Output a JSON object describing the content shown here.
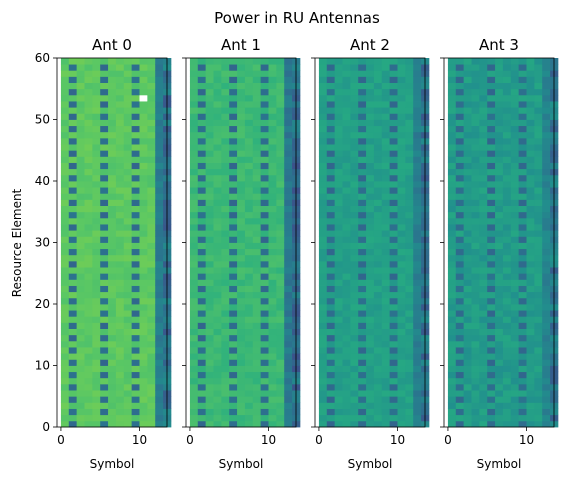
{
  "chart_data": {
    "type": "heatmap",
    "title": "Power in RU Antennas",
    "ylabel": "Resource Element",
    "xlabel": "Symbol",
    "xlim": [
      -0.5,
      13.5
    ],
    "ylim": [
      0,
      60
    ],
    "x_ticks": [
      0,
      10
    ],
    "y_ticks": [
      0,
      10,
      20,
      30,
      40,
      50,
      60
    ],
    "n_symbols": 14,
    "n_resource_elements": 60,
    "pilot_symbols": [
      1,
      5,
      9
    ],
    "pilot_period": 2,
    "colormap": "viridis",
    "panels": [
      {
        "name": "Ant 0",
        "data_level": 0.75,
        "pilot_level": 0.36,
        "edge_symbol_level": 0.38,
        "noise_amp": 0.03,
        "white_cell": {
          "symbol": 10,
          "re": 53
        }
      },
      {
        "name": "Ant 1",
        "data_level": 0.68,
        "pilot_level": 0.36,
        "edge_symbol_level": 0.36,
        "noise_amp": 0.03,
        "white_cell": null
      },
      {
        "name": "Ant 2",
        "data_level": 0.57,
        "pilot_level": 0.36,
        "edge_symbol_level": 0.38,
        "noise_amp": 0.04,
        "white_cell": null
      },
      {
        "name": "Ant 3",
        "data_level": 0.55,
        "pilot_level": 0.36,
        "edge_symbol_level": 0.4,
        "noise_amp": 0.05,
        "white_cell": null
      }
    ]
  }
}
